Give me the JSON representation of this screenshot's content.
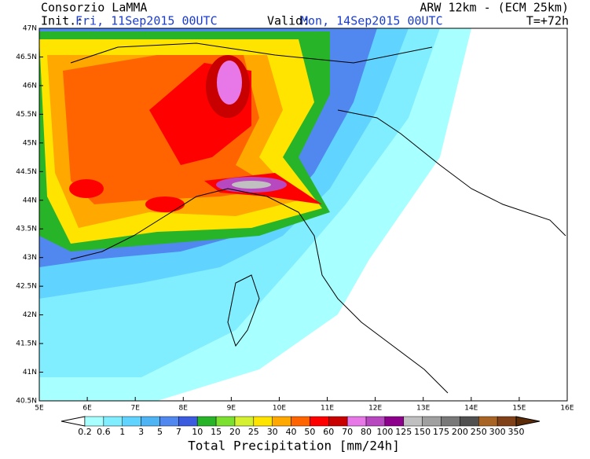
{
  "header": {
    "left_title": "Consorzio LaMMA",
    "init_label": "Init.:",
    "init_value": "Fri, 11Sep2015 00UTC",
    "valid_label": "Valid:",
    "valid_value": "Mon, 14Sep2015 00UTC",
    "model": "ARW 12km - (ECM 25km)",
    "lead_time": "T=+72h"
  },
  "map": {
    "lat_labels": [
      "47N",
      "46.5N",
      "46N",
      "45.5N",
      "45N",
      "44.5N",
      "44N",
      "43.5N",
      "43N",
      "42.5N",
      "42N",
      "41.5N",
      "41N",
      "40.5N"
    ],
    "lon_labels": [
      "5E",
      "6E",
      "7E",
      "8E",
      "9E",
      "10E",
      "11E",
      "12E",
      "13E",
      "14E",
      "15E",
      "16E"
    ]
  },
  "legend": {
    "title": "Total Precipitation [mm/24h]",
    "levels": [
      0.2,
      0.6,
      1,
      3,
      5,
      7,
      10,
      15,
      20,
      25,
      30,
      40,
      50,
      60,
      70,
      80,
      100,
      125,
      150,
      175,
      200,
      250,
      300,
      350
    ],
    "colors": [
      "#ffffff",
      "#a8ffff",
      "#80eeff",
      "#60d4ff",
      "#4fb4f4",
      "#5088f0",
      "#3c5ce0",
      "#28b428",
      "#7ce030",
      "#d4f030",
      "#ffe400",
      "#ffa800",
      "#ff6400",
      "#ff0000",
      "#c80000",
      "#e878e8",
      "#b848c0",
      "#8c008c",
      "#c0c0c0",
      "#a0a0a0",
      "#787878",
      "#505050",
      "#a86424",
      "#804018",
      "#5c2c08"
    ]
  }
}
